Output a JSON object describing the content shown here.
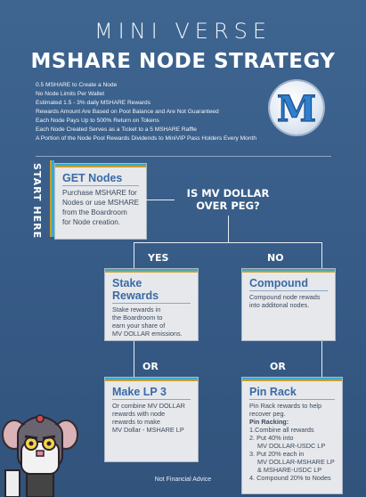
{
  "brand": "MINI VERSE",
  "headline": "MSHARE NODE STRATEGY",
  "rules": [
    "0.5 MSHARE to Create a Node",
    "No Node Limits Per Wallet",
    "Estimated 1.5 - 3% daily MSHARE Rewards",
    "Rewards Amount Are Based on Pool Balance and Are Not Guaranteed",
    "Each Node Pays Up to 500% Return on Tokens",
    "Each Node Created Serves as a Ticket to a 5 MSHARE Raffle",
    "A Portion of the Node Pool Rewards Dividends to MiniVIP Pass Holders Every Month"
  ],
  "logo_letter": "M",
  "start_label": "START HERE",
  "get_nodes": {
    "title": "GET Nodes",
    "body": [
      "Purchase MSHARE for",
      "Nodes or use MSHARE",
      "from the Boardroom",
      "for Node creation."
    ]
  },
  "question": [
    "IS MV DOLLAR",
    "OVER PEG?"
  ],
  "yes_label": "YES",
  "no_label": "NO",
  "or_label": "OR",
  "stake": {
    "title": "Stake Rewards",
    "body": [
      "Stake rewards in",
      "the Boardroom to",
      "earn your share of",
      "MV DOLLAR emissions."
    ]
  },
  "compound": {
    "title": "Compound",
    "body": [
      "Compound node rewads",
      "into additonal nodes."
    ]
  },
  "make_lp": {
    "title": "Make LP 3",
    "body": [
      "Or combine MV DOLLAR",
      "rewards with node",
      "rewards to make",
      "MV Dollar - MSHARE LP"
    ]
  },
  "pin_rack": {
    "title": "Pin Rack",
    "intro": [
      "Pin Rack rewards to help",
      "recover peg."
    ],
    "subhead": "Pin Racking:",
    "steps": [
      "1.Combine all rewards",
      "2. Put 40% into",
      "MV DOLLAR-USDC LP",
      "3. Put 20% each in",
      "MV DOLLAR-MSHARE LP",
      "& MSHARE-USDC LP",
      "4. Compound 20% to Nodes"
    ]
  },
  "footer": "Not Financial Advice",
  "colors": {
    "background": "#3a5f8c",
    "card": "#e6e8ec",
    "title": "#3a6aa5",
    "gold": "#c99d2b",
    "cyan": "#3aa9c9"
  }
}
